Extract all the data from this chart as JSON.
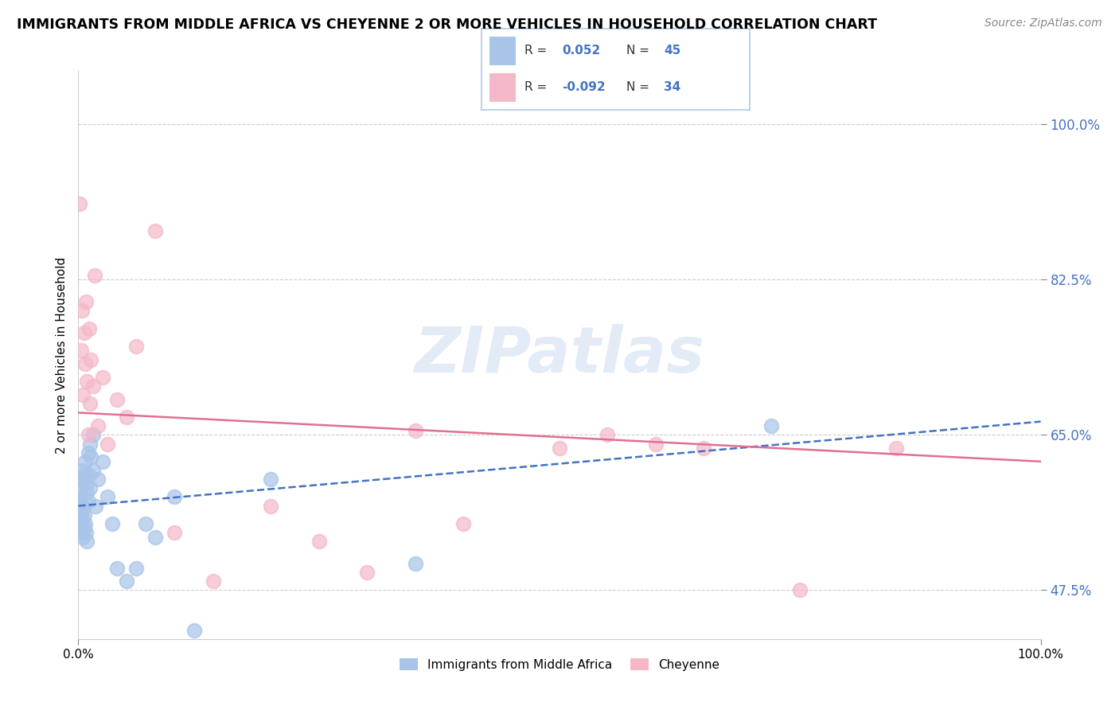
{
  "title": "IMMIGRANTS FROM MIDDLE AFRICA VS CHEYENNE 2 OR MORE VEHICLES IN HOUSEHOLD CORRELATION CHART",
  "source": "Source: ZipAtlas.com",
  "ylabel": "2 or more Vehicles in Household",
  "yticks": [
    47.5,
    65.0,
    82.5,
    100.0
  ],
  "xlim": [
    0.0,
    100.0
  ],
  "ylim": [
    42.0,
    106.0
  ],
  "legend_blue_label": "Immigrants from Middle Africa",
  "legend_pink_label": "Cheyenne",
  "R_blue": 0.052,
  "N_blue": 45,
  "R_pink": -0.092,
  "N_pink": 34,
  "blue_color": "#a8c4e8",
  "pink_color": "#f4b8c8",
  "trend_blue_color": "#4472c4",
  "trend_pink_color": "#e07090",
  "watermark": "ZIPatlas",
  "blue_x": [
    0.1,
    0.15,
    0.2,
    0.2,
    0.25,
    0.3,
    0.3,
    0.35,
    0.4,
    0.4,
    0.5,
    0.5,
    0.5,
    0.6,
    0.6,
    0.65,
    0.7,
    0.7,
    0.8,
    0.8,
    0.9,
    0.9,
    1.0,
    1.0,
    1.1,
    1.2,
    1.2,
    1.3,
    1.5,
    1.5,
    1.8,
    2.0,
    2.5,
    3.0,
    3.5,
    4.0,
    5.0,
    6.0,
    7.0,
    8.0,
    10.0,
    12.0,
    20.0,
    35.0,
    72.0
  ],
  "blue_y": [
    57.0,
    55.0,
    56.0,
    58.0,
    57.5,
    54.0,
    59.0,
    56.5,
    55.5,
    60.0,
    53.5,
    57.0,
    61.0,
    54.5,
    60.5,
    56.0,
    55.0,
    62.0,
    54.0,
    59.5,
    53.0,
    58.5,
    57.5,
    63.0,
    60.5,
    59.0,
    64.0,
    62.5,
    61.0,
    65.0,
    57.0,
    60.0,
    62.0,
    58.0,
    55.0,
    50.0,
    48.5,
    50.0,
    55.0,
    53.5,
    58.0,
    43.0,
    60.0,
    50.5,
    66.0
  ],
  "pink_x": [
    0.15,
    0.3,
    0.4,
    0.5,
    0.6,
    0.7,
    0.8,
    0.9,
    1.0,
    1.1,
    1.2,
    1.3,
    1.5,
    1.7,
    2.0,
    2.5,
    3.0,
    4.0,
    5.0,
    6.0,
    8.0,
    10.0,
    14.0,
    20.0,
    25.0,
    30.0,
    35.0,
    40.0,
    50.0,
    55.0,
    60.0,
    65.0,
    75.0,
    85.0
  ],
  "pink_y": [
    91.0,
    74.5,
    79.0,
    69.5,
    76.5,
    73.0,
    80.0,
    71.0,
    65.0,
    77.0,
    68.5,
    73.5,
    70.5,
    83.0,
    66.0,
    71.5,
    64.0,
    69.0,
    67.0,
    75.0,
    88.0,
    54.0,
    48.5,
    57.0,
    53.0,
    49.5,
    65.5,
    55.0,
    63.5,
    65.0,
    64.0,
    63.5,
    47.5,
    63.5
  ]
}
